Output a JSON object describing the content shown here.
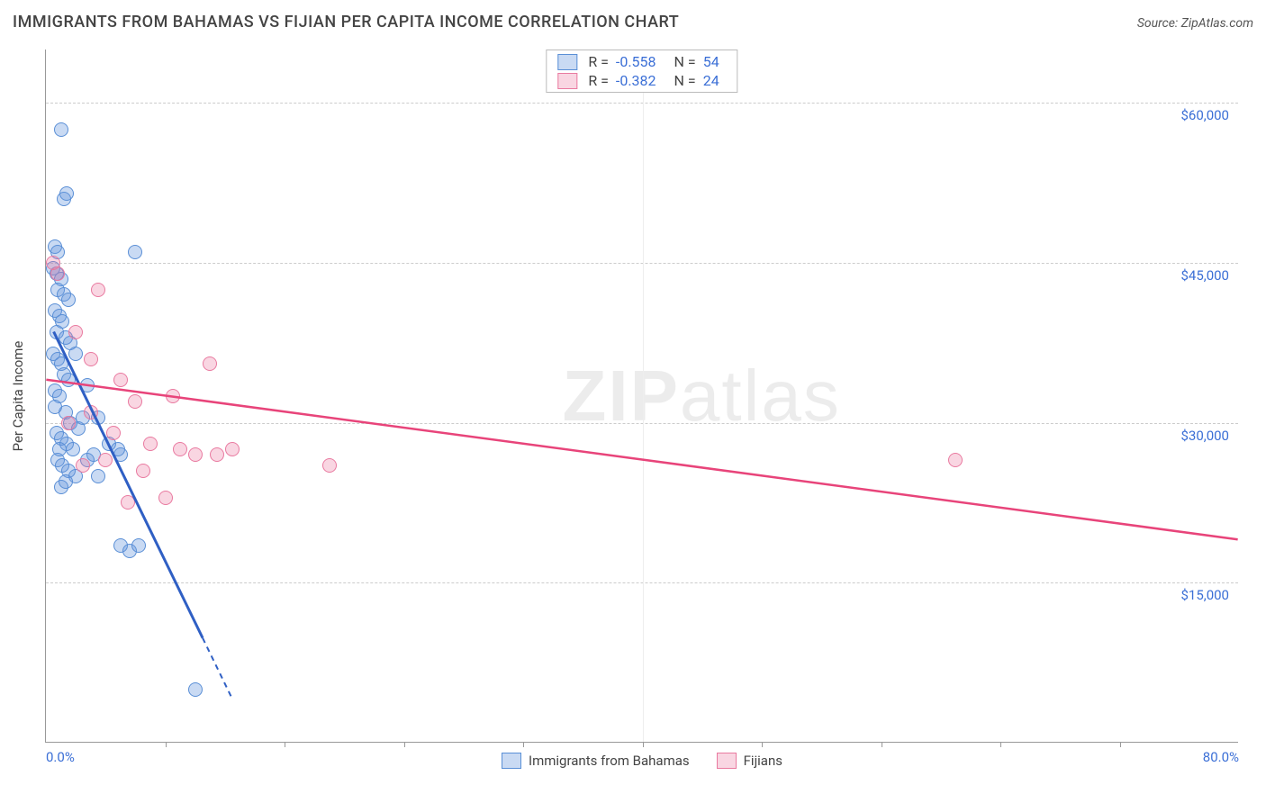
{
  "title": "IMMIGRANTS FROM BAHAMAS VS FIJIAN PER CAPITA INCOME CORRELATION CHART",
  "source_label": "Source: ZipAtlas.com",
  "watermark_a": "ZIP",
  "watermark_b": "atlas",
  "chart": {
    "type": "scatter",
    "xlim": [
      0,
      80
    ],
    "ylim": [
      0,
      65000
    ],
    "x_axis_label_left": "0.0%",
    "x_axis_label_right": "80.0%",
    "y_axis_title": "Per Capita Income",
    "y_ticks": [
      15000,
      30000,
      45000,
      60000
    ],
    "y_tick_labels": [
      "$15,000",
      "$30,000",
      "$45,000",
      "$60,000"
    ],
    "x_minor_ticks": [
      8,
      16,
      24,
      32,
      40,
      48,
      56,
      64,
      72
    ],
    "background_color": "#ffffff",
    "grid_color": "#cccccc",
    "point_radius": 8,
    "series": [
      {
        "name": "Immigrants from Bahamas",
        "color_fill": "rgba(99,148,222,0.35)",
        "color_stroke": "#5a8fd6",
        "line_color": "#2f5fc4",
        "r_value": "-0.558",
        "n_value": "54",
        "trend": {
          "x1": 0.5,
          "y1": 38500,
          "x2": 12.5,
          "y2": 4000,
          "dash_after_x": 10.5
        },
        "points": [
          [
            1.0,
            57500
          ],
          [
            1.2,
            51000
          ],
          [
            1.4,
            51500
          ],
          [
            0.6,
            46500
          ],
          [
            0.8,
            46000
          ],
          [
            6.0,
            46000
          ],
          [
            0.5,
            44500
          ],
          [
            0.7,
            44000
          ],
          [
            1.0,
            43500
          ],
          [
            0.8,
            42500
          ],
          [
            1.2,
            42000
          ],
          [
            1.5,
            41500
          ],
          [
            0.6,
            40500
          ],
          [
            0.9,
            40000
          ],
          [
            1.1,
            39500
          ],
          [
            0.7,
            38500
          ],
          [
            1.3,
            38000
          ],
          [
            1.6,
            37500
          ],
          [
            0.5,
            36500
          ],
          [
            0.8,
            36000
          ],
          [
            1.0,
            35500
          ],
          [
            1.2,
            34500
          ],
          [
            1.5,
            34000
          ],
          [
            2.0,
            36500
          ],
          [
            0.6,
            33000
          ],
          [
            0.9,
            32500
          ],
          [
            1.3,
            31000
          ],
          [
            1.6,
            30000
          ],
          [
            2.2,
            29500
          ],
          [
            2.8,
            33500
          ],
          [
            0.7,
            29000
          ],
          [
            1.0,
            28500
          ],
          [
            1.4,
            28000
          ],
          [
            1.8,
            27500
          ],
          [
            2.5,
            30500
          ],
          [
            3.2,
            27000
          ],
          [
            0.8,
            26500
          ],
          [
            1.1,
            26000
          ],
          [
            1.5,
            25500
          ],
          [
            2.0,
            25000
          ],
          [
            2.8,
            26500
          ],
          [
            3.5,
            25000
          ],
          [
            1.0,
            24000
          ],
          [
            1.3,
            24500
          ],
          [
            0.9,
            27500
          ],
          [
            3.5,
            30500
          ],
          [
            4.2,
            28000
          ],
          [
            5.0,
            27000
          ],
          [
            5.0,
            18500
          ],
          [
            5.6,
            18000
          ],
          [
            6.2,
            18500
          ],
          [
            4.8,
            27500
          ],
          [
            10.0,
            5000
          ],
          [
            0.6,
            31500
          ]
        ]
      },
      {
        "name": "Fijians",
        "color_fill": "rgba(236,120,160,0.30)",
        "color_stroke": "#e97aa0",
        "line_color": "#e8447a",
        "r_value": "-0.382",
        "n_value": "24",
        "trend": {
          "x1": 0,
          "y1": 34000,
          "x2": 80,
          "y2": 19000
        },
        "points": [
          [
            0.5,
            45000
          ],
          [
            0.8,
            44000
          ],
          [
            3.5,
            42500
          ],
          [
            2.0,
            38500
          ],
          [
            11.0,
            35500
          ],
          [
            5.0,
            34000
          ],
          [
            8.5,
            32500
          ],
          [
            6.0,
            32000
          ],
          [
            3.0,
            31000
          ],
          [
            1.5,
            30000
          ],
          [
            7.0,
            28000
          ],
          [
            9.0,
            27500
          ],
          [
            11.5,
            27000
          ],
          [
            12.5,
            27500
          ],
          [
            4.0,
            26500
          ],
          [
            2.5,
            26000
          ],
          [
            6.5,
            25500
          ],
          [
            8.0,
            23000
          ],
          [
            10.0,
            27000
          ],
          [
            5.5,
            22500
          ],
          [
            19.0,
            26000
          ],
          [
            3.0,
            36000
          ],
          [
            4.5,
            29000
          ],
          [
            61.0,
            26500
          ]
        ]
      }
    ],
    "legend_bottom": [
      {
        "label": "Immigrants from Bahamas",
        "fill": "rgba(99,148,222,0.35)",
        "stroke": "#5a8fd6"
      },
      {
        "label": "Fijians",
        "fill": "rgba(236,120,160,0.30)",
        "stroke": "#e97aa0"
      }
    ]
  }
}
